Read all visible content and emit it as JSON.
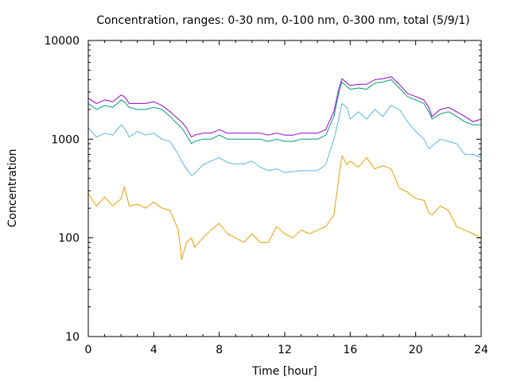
{
  "chart_data": {
    "type": "line",
    "title": "Concentration, ranges: 0-30 nm, 0-100 nm, 0-300 nm, total (5/9/1)",
    "xlabel": "Time [hour]",
    "ylabel": "Concentration",
    "xlim": [
      0,
      24
    ],
    "ylim": [
      10,
      10000
    ],
    "yscale": "log",
    "grid": false,
    "legend": "none",
    "xticks": [
      "0",
      "4",
      "8",
      "12",
      "16",
      "20",
      "24"
    ],
    "yticks": [
      "10",
      "100",
      "1000",
      "10000"
    ],
    "x": [
      0,
      0.5,
      1,
      1.5,
      2,
      2.2,
      2.5,
      3,
      3.5,
      4,
      4.5,
      5,
      5.5,
      5.7,
      6,
      6.3,
      6.5,
      7,
      7.5,
      8,
      8.5,
      9,
      9.5,
      10,
      10.5,
      11,
      11.5,
      12,
      12.5,
      13,
      13.5,
      14,
      14.5,
      15,
      15.3,
      15.5,
      15.8,
      16,
      16.5,
      17,
      17.5,
      18,
      18.5,
      19,
      19.5,
      20,
      20.5,
      20.8,
      21,
      21.5,
      22,
      22.5,
      23,
      23.5,
      24
    ],
    "series": [
      {
        "color": "#e69f00",
        "values": [
          280,
          210,
          260,
          210,
          250,
          330,
          210,
          220,
          200,
          230,
          200,
          190,
          120,
          60,
          90,
          100,
          80,
          100,
          120,
          140,
          110,
          100,
          90,
          110,
          90,
          90,
          130,
          110,
          100,
          120,
          110,
          120,
          130,
          170,
          400,
          680,
          550,
          600,
          520,
          650,
          500,
          540,
          500,
          320,
          290,
          250,
          240,
          180,
          170,
          210,
          190,
          130,
          120,
          110,
          100
        ]
      },
      {
        "color": "#56b4e9",
        "values": [
          1300,
          1050,
          1150,
          1100,
          1400,
          1300,
          1050,
          1200,
          1100,
          1150,
          1000,
          950,
          700,
          600,
          500,
          430,
          450,
          550,
          600,
          650,
          580,
          560,
          560,
          600,
          520,
          480,
          500,
          460,
          470,
          480,
          480,
          480,
          550,
          1000,
          1600,
          2300,
          2100,
          1600,
          1900,
          1600,
          2000,
          1700,
          2200,
          2000,
          1500,
          1200,
          1000,
          800,
          850,
          1000,
          950,
          900,
          700,
          700,
          650
        ]
      },
      {
        "color": "#009e73",
        "values": [
          2300,
          2000,
          2200,
          2100,
          2500,
          2400,
          2100,
          2000,
          2000,
          2100,
          2000,
          1700,
          1400,
          1300,
          1100,
          900,
          950,
          1000,
          1000,
          1100,
          1000,
          1000,
          1000,
          1000,
          1000,
          950,
          1000,
          950,
          950,
          1000,
          1000,
          1000,
          1100,
          1700,
          2900,
          3800,
          3400,
          3200,
          3300,
          3200,
          3700,
          3800,
          4000,
          3300,
          2700,
          2500,
          2300,
          1900,
          1600,
          1800,
          1900,
          1700,
          1500,
          1400,
          1400
        ]
      },
      {
        "color": "#9400d3",
        "values": [
          2600,
          2300,
          2500,
          2400,
          2800,
          2700,
          2300,
          2300,
          2300,
          2400,
          2200,
          1900,
          1600,
          1500,
          1300,
          1050,
          1100,
          1150,
          1150,
          1250,
          1150,
          1150,
          1150,
          1150,
          1150,
          1100,
          1150,
          1100,
          1100,
          1150,
          1150,
          1150,
          1250,
          1900,
          3200,
          4100,
          3700,
          3500,
          3600,
          3600,
          4000,
          4100,
          4300,
          3600,
          2900,
          2700,
          2500,
          2100,
          1700,
          2000,
          2100,
          1900,
          1700,
          1500,
          1600
        ]
      }
    ]
  }
}
